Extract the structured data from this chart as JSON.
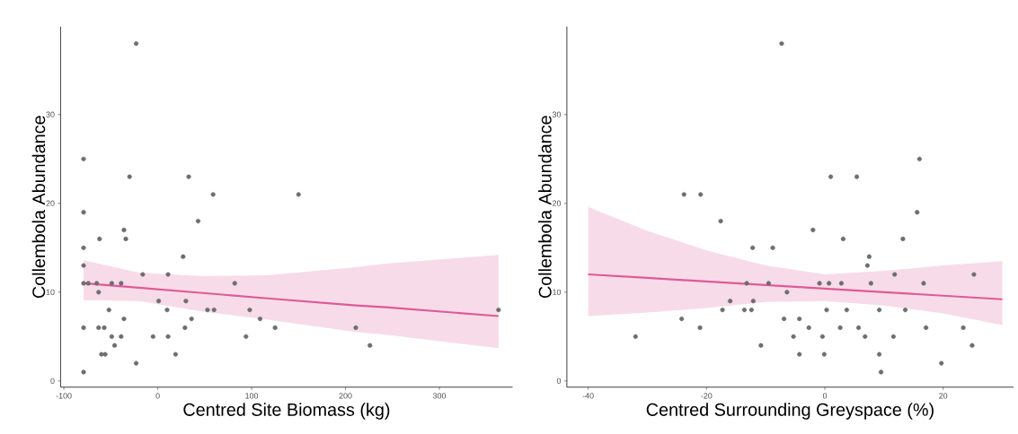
{
  "chart_data": [
    {
      "type": "scatter",
      "xlabel": "Centred Site Biomass (kg)",
      "ylabel": "Collembola Abundance",
      "xlim": [
        -103.5,
        378
      ],
      "ylim": [
        -0.7,
        39.9
      ],
      "xticks": [
        -100,
        0,
        100,
        200,
        300
      ],
      "yticks": [
        0,
        10,
        20,
        30
      ],
      "series": [
        {
          "type": "line",
          "color": "#dd5b97",
          "marker": "none",
          "line_style": "solid",
          "x": [
            -79,
            -20,
            48,
            117,
            211,
            243,
            363
          ],
          "values": [
            11.0,
            10.5,
            9.9,
            9.3,
            8.5,
            8.3,
            7.3
          ],
          "lower": [
            9.1,
            9.0,
            7.8,
            6.9,
            5.5,
            5.2,
            3.7
          ],
          "upper": [
            13.6,
            12.2,
            11.8,
            11.9,
            12.8,
            13.2,
            14.2
          ]
        },
        {
          "color": "#6e6e6e",
          "marker": "circle",
          "x": [
            -23,
            -79,
            -30,
            33,
            59,
            -79,
            43,
            -36,
            -62,
            -34,
            -79,
            27,
            -79,
            -16,
            11,
            -79,
            -74,
            -65,
            -49,
            -39,
            82,
            -63,
            1,
            30,
            -52,
            10,
            53,
            60,
            98,
            -36,
            36,
            109,
            -79,
            -63,
            -57,
            29,
            125,
            -49,
            -39,
            -5,
            11,
            94,
            -46,
            -60,
            -56,
            19,
            -23,
            -79,
            150,
            211,
            226,
            363
          ],
          "values": [
            38,
            25,
            23,
            23,
            21,
            19,
            18,
            17,
            16,
            16,
            15,
            14,
            13,
            12,
            12,
            11,
            11,
            11,
            11,
            11,
            11,
            10,
            9,
            9,
            8,
            8,
            8,
            8,
            8,
            7,
            7,
            7,
            6,
            6,
            6,
            6,
            6,
            5,
            5,
            5,
            5,
            5,
            4,
            3,
            3,
            3,
            2,
            1,
            21,
            6,
            4,
            8
          ]
        }
      ]
    },
    {
      "type": "scatter",
      "xlabel": "Centred Surrounding Greyspace (%)",
      "ylabel": "Collembola Abundance",
      "xlim": [
        -43.6,
        31.9
      ],
      "ylim": [
        -0.7,
        39.9
      ],
      "xticks": [
        -40,
        -20,
        0,
        20
      ],
      "yticks": [
        0,
        10,
        20,
        30
      ],
      "series": [
        {
          "type": "line",
          "color": "#dd5b97",
          "marker": "none",
          "line_style": "solid",
          "x": [
            -40,
            -30,
            -20,
            -10,
            0,
            10,
            20,
            30
          ],
          "values": [
            12.0,
            11.6,
            11.2,
            10.8,
            10.4,
            10.0,
            9.6,
            9.2
          ],
          "lower": [
            7.3,
            7.7,
            8.2,
            8.9,
            9.0,
            8.5,
            7.6,
            6.3
          ],
          "upper": [
            19.6,
            16.9,
            14.7,
            13.0,
            12.0,
            12.4,
            13.0,
            13.5
          ]
        },
        {
          "color": "#6e6e6e",
          "marker": "circle",
          "x": [
            -7.3,
            -23.8,
            -21,
            -17.6,
            -12.2,
            -8.8,
            -13.2,
            -9.5,
            -16,
            -12.1,
            -17.3,
            -13.6,
            -12.4,
            -24.2,
            -21.1,
            -32,
            -10.8,
            16,
            1,
            5.4,
            15.6,
            -2,
            3.1,
            13.2,
            7.5,
            7.2,
            11.8,
            25.2,
            -0.9,
            0.7,
            2.8,
            7.8,
            16.7,
            -6.4,
            0.3,
            3.7,
            9.2,
            13.6,
            -6.9,
            -4.3,
            -2.7,
            2.6,
            5.7,
            17.1,
            23.4,
            -5.3,
            -0.4,
            6.8,
            11.6,
            -4.3,
            -0.1,
            9.2,
            24.9,
            19.7,
            9.5
          ],
          "values": [
            38,
            21,
            21,
            18,
            15,
            15,
            11,
            11,
            9,
            9,
            8,
            8,
            8,
            7,
            6,
            5,
            4,
            25,
            23,
            23,
            19,
            17,
            16,
            16,
            14,
            13,
            12,
            12,
            11,
            11,
            11,
            11,
            11,
            10,
            8,
            8,
            8,
            8,
            7,
            7,
            6,
            6,
            6,
            6,
            6,
            5,
            5,
            5,
            5,
            3,
            3,
            3,
            4,
            2,
            1
          ]
        }
      ]
    }
  ]
}
